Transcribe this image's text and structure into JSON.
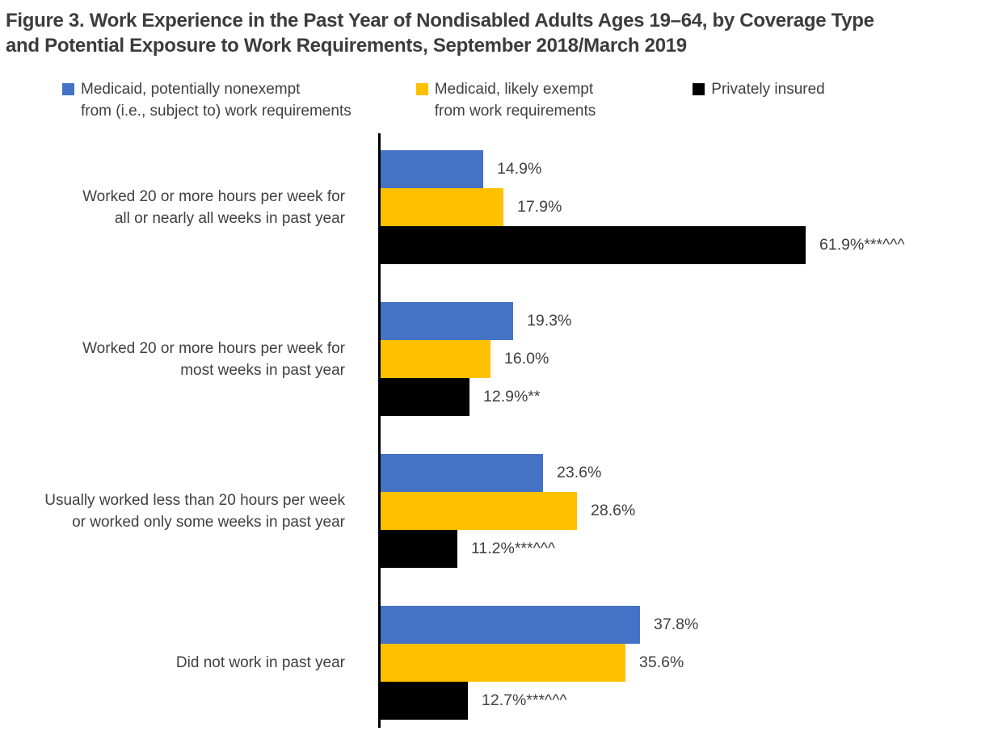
{
  "header": {
    "title_full": "Figure 3. Work Experience in the Past Year of Nondisabled Adults Ages 19–64, by Coverage Type and Potential Exposure to Work Requirements, September 2018/March 2019",
    "title_line1": "Figure 3. Work Experience in the Past Year of Nondisabled Adults Ages 19–64, by Coverage Type",
    "title_line2": "and Potential Exposure to Work Requirements, September 2018/March 2019"
  },
  "colors": {
    "medicaid_nonexempt": "#4472C4",
    "medicaid_exempt": "#FFC000",
    "privately_insured": "#000000",
    "text": "#404040",
    "title": "#3C3C3C",
    "axis": "#000000"
  },
  "legend": [
    {
      "key": "medicaid-nonexempt",
      "color": "#4472C4",
      "lines": [
        "Medicaid, potentially nonexempt",
        "from (i.e., subject to) work requirements"
      ]
    },
    {
      "key": "medicaid-exempt",
      "color": "#FFC000",
      "lines": [
        "Medicaid, likely exempt",
        "from work requirements"
      ]
    },
    {
      "key": "privately-insured",
      "color": "#000000",
      "lines": [
        "Privately insured"
      ]
    }
  ],
  "chart_data": {
    "type": "bar",
    "orientation": "horizontal",
    "title": "Figure 3. Work Experience in the Past Year of Nondisabled Adults Ages 19–64, by Coverage Type and Potential Exposure to Work Requirements, September 2018/March 2019",
    "unit": "%",
    "xlim": [
      0,
      86
    ],
    "grid": false,
    "legend_position": "top",
    "categories": [
      {
        "lines": [
          "Worked 20 or more hours per week for",
          "all or nearly all weeks in past year"
        ]
      },
      {
        "lines": [
          "Worked 20 or more hours per week for",
          "most weeks in past year"
        ]
      },
      {
        "lines": [
          "Usually worked less than 20 hours per week",
          "or worked only some weeks in past year"
        ]
      },
      {
        "lines": [
          "Did not work in past year"
        ]
      }
    ],
    "series": [
      {
        "key": "medicaid-nonexempt",
        "name": "Medicaid, potentially nonexempt from (i.e., subject to) work requirements",
        "color": "#4472C4",
        "values": [
          14.9,
          19.3,
          23.6,
          37.8
        ],
        "labels": [
          "14.9%",
          "19.3%",
          "23.6%",
          "37.8%"
        ]
      },
      {
        "key": "medicaid-exempt",
        "name": "Medicaid, likely exempt from work requirements",
        "color": "#FFC000",
        "values": [
          17.9,
          16.0,
          28.6,
          35.6
        ],
        "labels": [
          "17.9%",
          "16.0%",
          "28.6%",
          "35.6%"
        ]
      },
      {
        "key": "privately-insured",
        "name": "Privately insured",
        "color": "#000000",
        "values": [
          61.9,
          12.9,
          11.2,
          12.7
        ],
        "labels": [
          "61.9%***^^^",
          "12.9%**",
          "11.2%***^^^",
          "12.7%***^^^"
        ]
      }
    ]
  }
}
